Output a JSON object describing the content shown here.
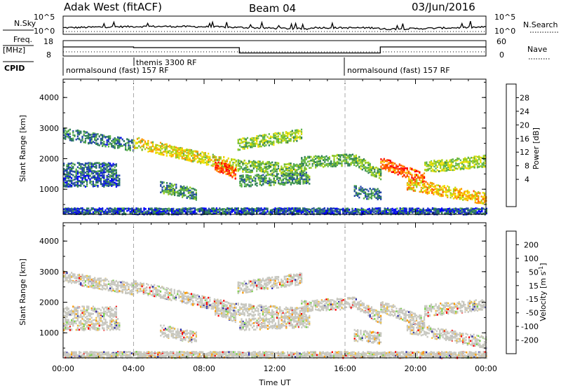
{
  "header": {
    "left": "Adak West (fitACF)",
    "center": "Beam 04",
    "right": "03/Jun/2016"
  },
  "noise_panel": {
    "left_label": "N.Sky",
    "right_label": "N.Search",
    "left_ticks": [
      "10^5",
      "10^0"
    ],
    "right_ticks": [
      "10^5",
      "10^0"
    ]
  },
  "freq_panel": {
    "left_label_1": "Freq.",
    "left_label_2": "[MHz]",
    "right_label": "Nave",
    "left_ticks": [
      "18",
      "8"
    ],
    "right_ticks": [
      "60",
      "0"
    ],
    "freq_steps": [
      {
        "start_h": 0.0,
        "end_h": 4.0,
        "mhz": 14.5
      },
      {
        "start_h": 4.0,
        "end_h": 10.0,
        "mhz": 14.0
      },
      {
        "start_h": 10.0,
        "end_h": 18.0,
        "mhz": 10.2
      },
      {
        "start_h": 18.0,
        "end_h": 24.0,
        "mhz": 14.5
      }
    ]
  },
  "cpid_panel": {
    "label": "CPID",
    "segments": [
      {
        "text": "normalsound (fast) 157 RF",
        "start_h": 0.0
      },
      {
        "text": "themis 3300 RF",
        "start_h": 4.0
      },
      {
        "text": "normalsound (fast) 157 RF",
        "start_h": 16.0
      }
    ]
  },
  "x_axis": {
    "label": "Time UT",
    "ticks": [
      "00:00",
      "04:00",
      "08:00",
      "12:00",
      "16:00",
      "20:00",
      "00:00"
    ],
    "range_h": [
      0,
      24
    ]
  },
  "power_panel": {
    "ylabel": "Slant Range [km]",
    "yticks": [
      "4000",
      "3000",
      "2000",
      "1000"
    ],
    "colorbar_label": "Power [dB]",
    "colorbar_ticks": [
      "28",
      "24",
      "20",
      "16",
      "12",
      "8",
      "4"
    ],
    "colors": [
      "#0000ff",
      "#2244aa",
      "#2e7f55",
      "#5db34a",
      "#a0d020",
      "#f0e000",
      "#ff9900",
      "#ff5500",
      "#ff0000"
    ]
  },
  "velocity_panel": {
    "ylabel": "Slant Range [km]",
    "yticks": [
      "4000",
      "3000",
      "2000",
      "1000"
    ],
    "colorbar_label": "Velocity [m s",
    "colorbar_label_sup": "-1",
    "colorbar_label_end": "]",
    "colorbar_ticks": [
      "200",
      "100",
      "50",
      "15",
      "-15",
      "-50",
      "-100",
      "-200"
    ],
    "colors": [
      "#2a2aa8",
      "#3a64b4",
      "#2e7f55",
      "#7ad44a",
      "#c8c8c0",
      "#f0c040",
      "#ff9900",
      "#ff5500",
      "#ff0000"
    ]
  },
  "chart_data": [
    {
      "type": "heatmap",
      "title": "Power",
      "xlabel": "Time UT",
      "ylabel": "Slant Range [km]",
      "xlim": [
        0,
        24
      ],
      "ylim": [
        180,
        4600
      ],
      "colorbar_label": "Power [dB]",
      "colorbar_range": [
        0,
        30
      ],
      "echo_bands": [
        {
          "start_h": 0.0,
          "end_h": 4.0,
          "r0_km": 2850,
          "r1_km": 2450,
          "db": 8
        },
        {
          "start_h": 0.0,
          "end_h": 3.2,
          "r0_km": 1300,
          "r1_km": 1300,
          "db": 6
        },
        {
          "start_h": 0.0,
          "end_h": 3.0,
          "r0_km": 1700,
          "r1_km": 1700,
          "db": 7
        },
        {
          "start_h": 4.0,
          "end_h": 9.8,
          "r0_km": 2550,
          "r1_km": 1800,
          "db": 18
        },
        {
          "start_h": 8.6,
          "end_h": 9.8,
          "r0_km": 1800,
          "r1_km": 1550,
          "db": 26
        },
        {
          "start_h": 5.5,
          "end_h": 7.6,
          "r0_km": 1100,
          "r1_km": 850,
          "db": 10
        },
        {
          "start_h": 9.9,
          "end_h": 13.5,
          "r0_km": 2500,
          "r1_km": 2800,
          "db": 14
        },
        {
          "start_h": 9.9,
          "end_h": 13.8,
          "r0_km": 1800,
          "r1_km": 1650,
          "db": 13
        },
        {
          "start_h": 10.0,
          "end_h": 14.0,
          "r0_km": 1300,
          "r1_km": 1400,
          "db": 10
        },
        {
          "start_h": 13.5,
          "end_h": 16.5,
          "r0_km": 1900,
          "r1_km": 2000,
          "db": 12
        },
        {
          "start_h": 16.5,
          "end_h": 18.0,
          "r0_km": 2000,
          "r1_km": 1500,
          "db": 13
        },
        {
          "start_h": 18.0,
          "end_h": 20.5,
          "r0_km": 1900,
          "r1_km": 1350,
          "db": 25
        },
        {
          "start_h": 20.5,
          "end_h": 24.0,
          "r0_km": 1750,
          "r1_km": 1950,
          "db": 15
        },
        {
          "start_h": 19.5,
          "end_h": 24.0,
          "r0_km": 1200,
          "r1_km": 700,
          "db": 20
        },
        {
          "start_h": 16.5,
          "end_h": 18.0,
          "r0_km": 950,
          "r1_km": 850,
          "db": 8
        },
        {
          "start_h": 0.0,
          "end_h": 24.0,
          "r0_km": 300,
          "r1_km": 300,
          "db": 6
        }
      ]
    },
    {
      "type": "heatmap",
      "title": "Velocity",
      "xlabel": "Time UT",
      "ylabel": "Slant Range [km]",
      "xlim": [
        0,
        24
      ],
      "ylim": [
        180,
        4600
      ],
      "colorbar_label": "Velocity [m s-1]",
      "colorbar_range": [
        -250,
        250
      ],
      "note": "same echo bands as power panel; mostly |v| < 15 m/s (grey)"
    }
  ]
}
